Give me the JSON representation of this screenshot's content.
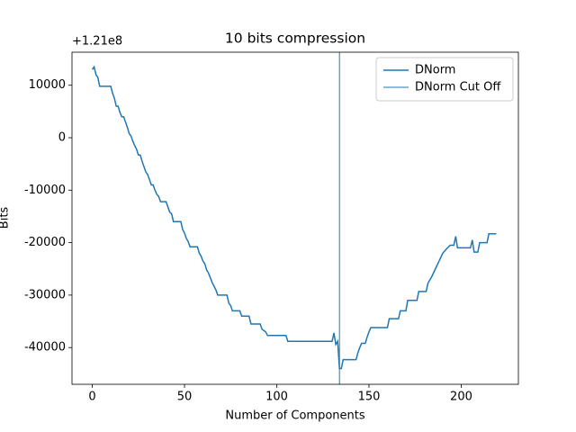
{
  "chart_data": {
    "type": "line",
    "title": "10 bits compression",
    "x_label": "Number of Components",
    "y_label": "Bits",
    "y_offset_label": "+1.21e8",
    "x": [
      0,
      1,
      2,
      3,
      4,
      10,
      11,
      12,
      13,
      14,
      15,
      16,
      17,
      18,
      19,
      20,
      21,
      22,
      23,
      24,
      25,
      26,
      27,
      28,
      29,
      30,
      31,
      32,
      33,
      34,
      35,
      36,
      37,
      40,
      41,
      42,
      43,
      44,
      48,
      49,
      50,
      51,
      52,
      53,
      57,
      58,
      59,
      60,
      61,
      62,
      63,
      64,
      65,
      66,
      67,
      68,
      73,
      74,
      75,
      76,
      80,
      81,
      85,
      86,
      91,
      92,
      94,
      95,
      105,
      106,
      130,
      131,
      132,
      133,
      134,
      135,
      136,
      143,
      144,
      145,
      146,
      148,
      149,
      150,
      151,
      160,
      161,
      166,
      167,
      170,
      171,
      176,
      177,
      181,
      182,
      184,
      186,
      188,
      190,
      192,
      194,
      196,
      197,
      198,
      205,
      206,
      207,
      209,
      210,
      214,
      215,
      219
    ],
    "series": [
      {
        "name": "DNorm",
        "color": "#1f77b4",
        "values": [
          13000,
          13500,
          12000,
          11500,
          9800,
          9800,
          8500,
          7500,
          6000,
          6000,
          4800,
          4000,
          4000,
          3000,
          2000,
          800,
          300,
          -700,
          -1500,
          -2200,
          -3300,
          -3300,
          -4500,
          -5500,
          -6500,
          -7000,
          -8000,
          -9000,
          -9000,
          -10000,
          -10800,
          -11200,
          -12200,
          -12200,
          -13200,
          -14200,
          -14500,
          -16000,
          -16000,
          -17500,
          -18200,
          -19200,
          -19800,
          -20800,
          -20800,
          -22000,
          -22600,
          -23500,
          -24000,
          -25200,
          -25800,
          -26700,
          -27600,
          -28300,
          -29000,
          -30000,
          -30000,
          -31500,
          -32000,
          -33000,
          -33000,
          -34000,
          -34000,
          -35500,
          -35500,
          -36500,
          -37000,
          -37700,
          -37700,
          -38800,
          -38800,
          -37200,
          -39400,
          -38800,
          -44000,
          -44000,
          -42300,
          -42300,
          -41000,
          -40000,
          -39200,
          -39200,
          -38000,
          -37000,
          -36200,
          -36200,
          -34500,
          -34500,
          -33000,
          -33000,
          -31000,
          -31000,
          -29300,
          -29300,
          -27700,
          -26500,
          -25000,
          -23500,
          -22000,
          -21200,
          -20500,
          -20500,
          -18800,
          -21000,
          -21000,
          -19500,
          -21800,
          -21800,
          -20000,
          -20000,
          -18300,
          -18300
        ]
      }
    ],
    "vlines": [
      {
        "name": "DNorm Cut Off",
        "color": "#1f77b4",
        "x": 134
      }
    ],
    "xlim": [
      -11,
      231
    ],
    "ylim": [
      -47000,
      16300
    ],
    "xticks": [
      0,
      50,
      100,
      150,
      200
    ],
    "yticks": [
      -40000,
      -30000,
      -20000,
      -10000,
      0,
      10000
    ],
    "legend": "upper right"
  }
}
